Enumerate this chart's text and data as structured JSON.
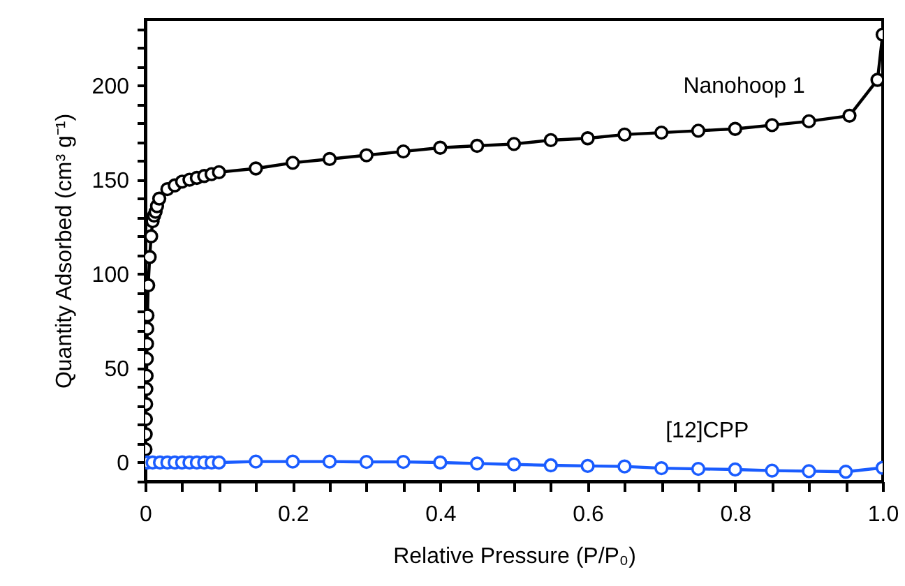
{
  "chart_data": {
    "type": "line",
    "xlabel": "Relative Pressure (P/P₀)",
    "ylabel": "Quantity Adsorbed (cm³ g⁻¹)",
    "xlim": [
      0,
      1.0
    ],
    "ylim": [
      -10,
      235
    ],
    "xticks": [
      0,
      {
        "value": 0.05,
        "label": null
      },
      0.2,
      {
        "value": 0.1,
        "label": null
      },
      {
        "value": 0.15,
        "label": null
      },
      {
        "value": 0.25,
        "label": null
      },
      {
        "value": 0.3,
        "label": null
      },
      {
        "value": 0.35,
        "label": null
      },
      0.4,
      {
        "value": 0.45,
        "label": null
      },
      {
        "value": 0.5,
        "label": null
      },
      {
        "value": 0.55,
        "label": null
      },
      0.6,
      {
        "value": 0.65,
        "label": null
      },
      {
        "value": 0.7,
        "label": null
      },
      {
        "value": 0.75,
        "label": null
      },
      0.8,
      {
        "value": 0.85,
        "label": null
      },
      {
        "value": 0.9,
        "label": null
      },
      {
        "value": 0.95,
        "label": null
      },
      {
        "value": 1.0,
        "label": "1.0"
      }
    ],
    "yticks": [
      {
        "value": -10,
        "label": null
      },
      0,
      {
        "value": 10,
        "label": null
      },
      {
        "value": 20,
        "label": null
      },
      {
        "value": 30,
        "label": null
      },
      {
        "value": 40,
        "label": null
      },
      50,
      {
        "value": 60,
        "label": null
      },
      {
        "value": 70,
        "label": null
      },
      {
        "value": 80,
        "label": null
      },
      {
        "value": 90,
        "label": null
      },
      100,
      {
        "value": 110,
        "label": null
      },
      {
        "value": 120,
        "label": null
      },
      {
        "value": 130,
        "label": null
      },
      {
        "value": 140,
        "label": null
      },
      150,
      {
        "value": 160,
        "label": null
      },
      {
        "value": 170,
        "label": null
      },
      {
        "value": 180,
        "label": null
      },
      {
        "value": 190,
        "label": null
      },
      200,
      {
        "value": 210,
        "label": null
      },
      {
        "value": 220,
        "label": null
      },
      {
        "value": 230,
        "label": null
      }
    ],
    "marker": "circle",
    "line_style": "solid",
    "series": [
      {
        "name": "Nanohoop 1",
        "color": "#000000",
        "x": [
          0.0003,
          0.0006,
          0.0009,
          0.0012,
          0.0015,
          0.0018,
          0.0021,
          0.0024,
          0.0027,
          0.003,
          0.004,
          0.006,
          0.008,
          0.01,
          0.012,
          0.014,
          0.016,
          0.019,
          0.03,
          0.04,
          0.05,
          0.06,
          0.07,
          0.08,
          0.09,
          0.1,
          0.15,
          0.2,
          0.25,
          0.3,
          0.35,
          0.4,
          0.45,
          0.5,
          0.55,
          0.6,
          0.65,
          0.7,
          0.75,
          0.8,
          0.85,
          0.9,
          0.955,
          0.993,
          1.0
        ],
        "values": [
          7,
          15,
          23,
          31,
          39,
          46,
          55,
          63,
          71,
          78,
          94,
          109,
          120,
          128,
          131,
          133,
          136,
          140,
          145,
          147,
          149,
          150,
          151,
          152,
          153,
          154,
          156,
          159,
          161,
          163,
          165,
          167,
          168,
          169,
          171,
          172,
          174,
          175,
          176,
          177,
          179,
          181,
          184,
          203,
          227
        ]
      },
      {
        "name": "[12]CPP",
        "color": "#1a5cff",
        "x": [
          0.003,
          0.01,
          0.02,
          0.03,
          0.04,
          0.05,
          0.06,
          0.07,
          0.08,
          0.09,
          0.1,
          0.15,
          0.2,
          0.25,
          0.3,
          0.35,
          0.4,
          0.45,
          0.5,
          0.55,
          0.6,
          0.65,
          0.7,
          0.75,
          0.8,
          0.85,
          0.9,
          0.95,
          1.0
        ],
        "values": [
          0,
          0,
          0,
          0,
          0,
          0,
          0,
          0,
          0,
          0,
          0,
          0.5,
          0.5,
          0.5,
          0.3,
          0.3,
          0,
          -0.5,
          -1,
          -1.5,
          -1.8,
          -2.1,
          -3,
          -3.4,
          -3.7,
          -4.3,
          -4.6,
          -4.9,
          -2.8
        ]
      }
    ]
  }
}
